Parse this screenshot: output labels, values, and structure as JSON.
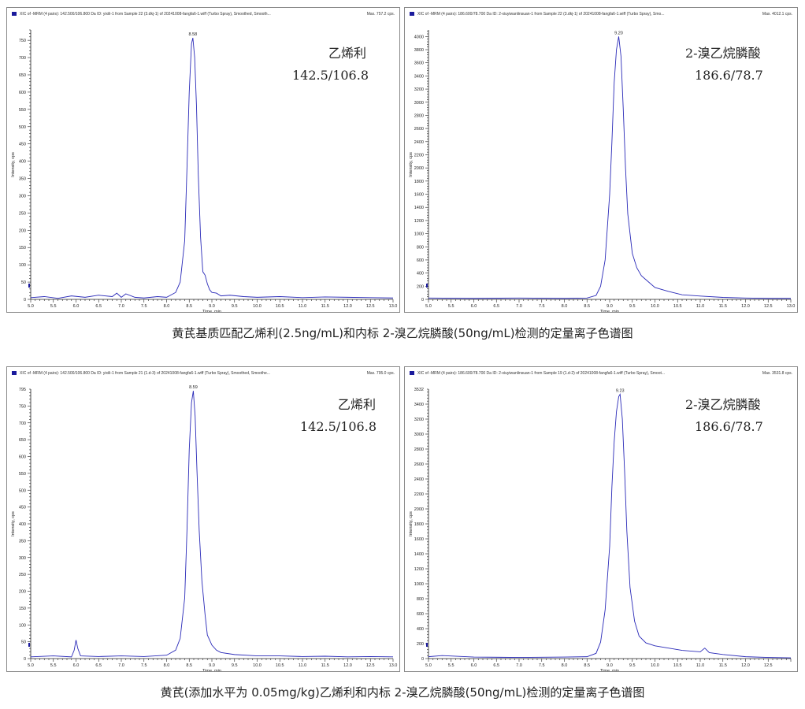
{
  "captions": {
    "top": "黄芪基质匹配乙烯利(2.5ng/mL)和内标 2-溴乙烷膦酸(50ng/mL)检测的定量离子色谱图",
    "bottom": "黄芪(添加水平为 0.05mg/kg)乙烯利和内标 2-溴乙烷膦酸(50ng/mL)检测的定量离子色谱图"
  },
  "chart_data": [
    {
      "type": "line",
      "header": "XIC of -MRM (4 pairs): 142.500/106.800 Da ID: yixili-1 from Sample 22 (3.dkj-1) of 20241008-fangfa6-1.wiff (Turbo Spray), Smoothed, Smooth...",
      "max_label": "Max. 757.2 cps.",
      "compound": "乙烯利",
      "transition": "142.5/106.8",
      "xlabel": "Time, min",
      "ylabel": "Intensity, cps",
      "xlim": [
        5.0,
        13.0
      ],
      "ylim": [
        0,
        780
      ],
      "xticks": [
        5.0,
        5.5,
        6.0,
        6.5,
        7.0,
        7.5,
        8.0,
        8.5,
        9.0,
        9.5,
        10.0,
        10.5,
        11.0,
        11.5,
        12.0,
        12.5,
        13.0
      ],
      "yticks": [
        0,
        50,
        100,
        150,
        200,
        250,
        300,
        350,
        400,
        450,
        500,
        550,
        600,
        650,
        700,
        750
      ],
      "peak_label": "8.58",
      "x": [
        5.0,
        5.3,
        5.6,
        5.9,
        6.2,
        6.5,
        6.8,
        6.9,
        7.0,
        7.1,
        7.3,
        7.5,
        7.8,
        8.0,
        8.2,
        8.3,
        8.4,
        8.45,
        8.5,
        8.55,
        8.58,
        8.62,
        8.66,
        8.7,
        8.75,
        8.8,
        8.85,
        8.9,
        8.95,
        9.0,
        9.1,
        9.2,
        9.4,
        9.7,
        10.0,
        10.5,
        11.0,
        11.5,
        12.0,
        12.5,
        13.0
      ],
      "y": [
        5,
        8,
        3,
        10,
        6,
        12,
        8,
        18,
        6,
        16,
        6,
        4,
        8,
        6,
        20,
        50,
        170,
        380,
        600,
        740,
        757,
        700,
        560,
        360,
        180,
        80,
        70,
        45,
        28,
        20,
        18,
        10,
        12,
        8,
        6,
        8,
        5,
        7,
        6,
        5,
        4
      ]
    },
    {
      "type": "line",
      "header": "XIC of -MRM (4 pairs): 186.600/78.700 Da ID: 2-xiuyiwanlinsuan-1 from Sample 22 (3.dkj-1) of 20241008-fangfa6-1.wiff (Turbo Spray), Smo...",
      "max_label": "Max. 4012.1 cps.",
      "compound": "2-溴乙烷膦酸",
      "transition": "186.6/78.7",
      "xlabel": "Time, min",
      "ylabel": "Intensity, cps",
      "xlim": [
        5.0,
        13.0
      ],
      "ylim": [
        0,
        4100
      ],
      "xticks": [
        5.0,
        5.5,
        6.0,
        6.5,
        7.0,
        7.5,
        8.0,
        8.5,
        9.0,
        9.5,
        10.0,
        10.5,
        11.0,
        11.5,
        12.0,
        12.5,
        13.0
      ],
      "yticks": [
        0,
        200,
        400,
        600,
        800,
        1000,
        1200,
        1400,
        1600,
        1800,
        2000,
        2200,
        2400,
        2600,
        2800,
        3000,
        3200,
        3400,
        3600,
        3800,
        4000
      ],
      "peak_label": "9.20",
      "x": [
        5.0,
        6.0,
        7.0,
        8.0,
        8.5,
        8.7,
        8.8,
        8.9,
        9.0,
        9.05,
        9.1,
        9.15,
        9.2,
        9.25,
        9.3,
        9.35,
        9.4,
        9.5,
        9.6,
        9.7,
        9.8,
        10.0,
        10.3,
        10.6,
        11.0,
        11.5,
        12.0,
        12.5,
        13.0
      ],
      "y": [
        20,
        15,
        20,
        15,
        20,
        60,
        200,
        600,
        1600,
        2400,
        3300,
        3800,
        4000,
        3700,
        2900,
        2000,
        1300,
        700,
        480,
        360,
        300,
        180,
        120,
        70,
        50,
        30,
        20,
        15,
        15
      ]
    },
    {
      "type": "line",
      "header": "XIC of -MRM (4 pairs): 142.500/106.800 Da ID: yixili-1 from Sample 21 (1.d-3) of 20241008-fangfa6-1.wiff (Turbo Spray), Smoothed, Smoothe...",
      "max_label": "Max. 795.0 cps.",
      "compound": "乙烯利",
      "transition": "142.5/106.8",
      "xlabel": "Time, min",
      "ylabel": "Intensity, cps",
      "xlim": [
        5.0,
        13.0
      ],
      "ylim": [
        0,
        800
      ],
      "xticks": [
        5.0,
        5.5,
        6.0,
        6.5,
        7.0,
        7.5,
        8.0,
        8.5,
        9.0,
        9.5,
        10.0,
        10.5,
        11.0,
        11.5,
        12.0,
        12.5,
        13.0
      ],
      "yticks": [
        0,
        50,
        100,
        150,
        200,
        250,
        300,
        350,
        400,
        450,
        500,
        550,
        600,
        650,
        700,
        750
      ],
      "top_tick_label": "795",
      "peak_label": "8.59",
      "x": [
        5.0,
        5.5,
        5.9,
        5.96,
        6.0,
        6.04,
        6.1,
        6.5,
        7.0,
        7.5,
        8.0,
        8.2,
        8.3,
        8.4,
        8.45,
        8.5,
        8.55,
        8.59,
        8.63,
        8.67,
        8.72,
        8.78,
        8.85,
        8.9,
        9.0,
        9.1,
        9.2,
        9.5,
        10.0,
        10.5,
        11.0,
        11.5,
        12.0,
        12.5,
        13.0
      ],
      "y": [
        5,
        8,
        5,
        25,
        55,
        30,
        8,
        6,
        8,
        6,
        10,
        25,
        60,
        180,
        380,
        620,
        760,
        795,
        720,
        560,
        380,
        230,
        130,
        70,
        40,
        25,
        18,
        12,
        8,
        8,
        6,
        7,
        5,
        6,
        5
      ]
    },
    {
      "type": "line",
      "header": "XIC of -MRM (4 pairs): 186.600/78.700 Da ID: 2-xiuyiwanlinsuan-1 from Sample 19 (1.d-2) of 20241008-fangfa6-1.wiff (Turbo Spray), Smoot...",
      "max_label": "Max. 3531.8 cps.",
      "compound": "2-溴乙烷膦酸",
      "transition": "186.6/78.7",
      "xlabel": "Time, min",
      "ylabel": "Intensity, cps",
      "xlim": [
        5.0,
        13.0
      ],
      "ylim": [
        0,
        3600
      ],
      "xticks": [
        5.0,
        5.5,
        6.0,
        6.5,
        7.0,
        7.5,
        8.0,
        8.5,
        9.0,
        9.5,
        10.0,
        10.5,
        11.0,
        11.5,
        12.0,
        12.5
      ],
      "yticks": [
        0,
        200,
        400,
        600,
        800,
        1000,
        1200,
        1400,
        1600,
        1800,
        2000,
        2200,
        2400,
        2600,
        2800,
        3000,
        3200,
        3400
      ],
      "top_tick_label": "3532",
      "peak_label": "9.23",
      "x": [
        5.0,
        5.3,
        6.0,
        7.0,
        8.0,
        8.5,
        8.7,
        8.8,
        8.9,
        9.0,
        9.05,
        9.1,
        9.15,
        9.2,
        9.23,
        9.28,
        9.33,
        9.38,
        9.45,
        9.55,
        9.65,
        9.8,
        10.0,
        10.3,
        10.6,
        11.0,
        11.1,
        11.2,
        11.5,
        12.0,
        12.5,
        13.0
      ],
      "y": [
        25,
        40,
        20,
        15,
        20,
        25,
        70,
        220,
        650,
        1500,
        2300,
        2900,
        3300,
        3500,
        3532,
        3200,
        2500,
        1700,
        950,
        500,
        300,
        210,
        170,
        140,
        110,
        90,
        140,
        80,
        55,
        25,
        15,
        10
      ]
    }
  ]
}
